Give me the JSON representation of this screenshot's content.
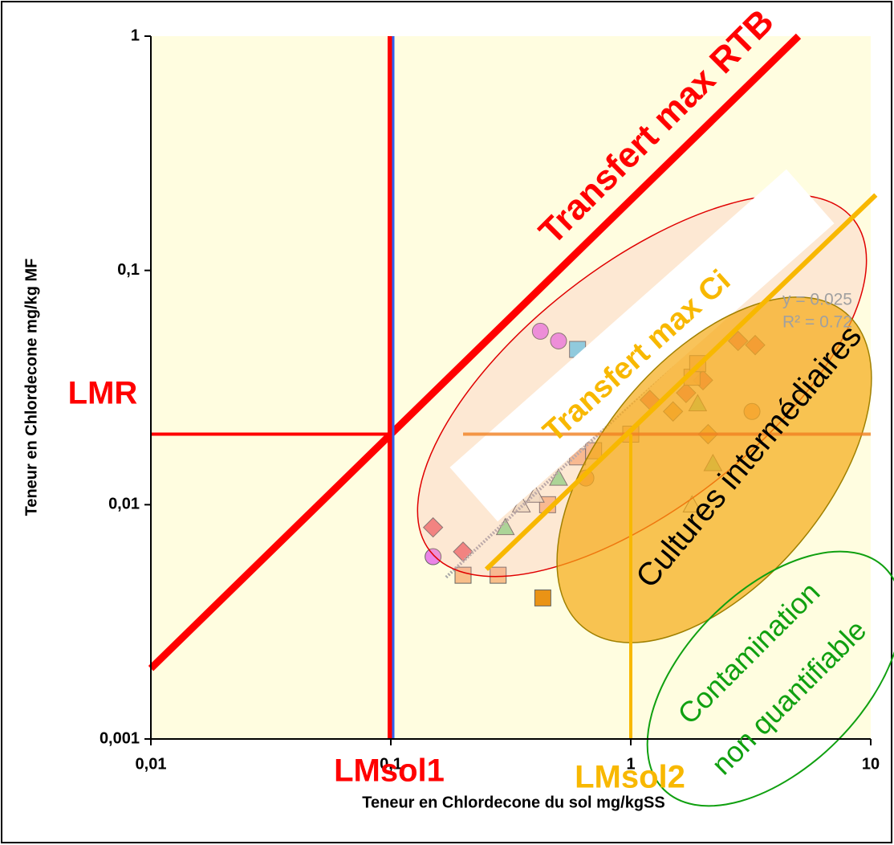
{
  "chart_data": {
    "type": "scatter",
    "x_label": "Teneur en Chlordecone  du sol  mg/kgSS",
    "y_label": "Teneur en Chlordecone   mg/kg MF",
    "log_x": true,
    "log_y": true,
    "xlim": [
      0.01,
      10
    ],
    "ylim": [
      0.001,
      1
    ],
    "xticks": [
      {
        "value": 0.01,
        "label": "0,01"
      },
      {
        "value": 0.1,
        "label": "0,1"
      },
      1,
      10
    ],
    "yticks": [
      {
        "value": 0.001,
        "label": "0,001"
      },
      {
        "value": 0.01,
        "label": "0,01"
      },
      {
        "value": 0.1,
        "label": "0,1"
      },
      1
    ],
    "equation": "y = 0.025",
    "r_squared": "R² = 0.72",
    "zones": [
      "Cultures intermédiaires",
      "Contamination",
      "non quantifiable"
    ],
    "series": [
      {
        "marker": "circle",
        "color": "#e878e8",
        "x": [
          0.42,
          0.5,
          0.15
        ],
        "values": [
          0.055,
          0.05,
          0.006
        ]
      },
      {
        "marker": "diamond",
        "color": "#f06868",
        "x": [
          0.15,
          0.2,
          2.8,
          3.3,
          1.7,
          2.0,
          1.2
        ],
        "values": [
          0.008,
          0.0063,
          0.05,
          0.048,
          0.03,
          0.034,
          0.028
        ]
      },
      {
        "marker": "square",
        "color": "#f8b880",
        "x": [
          0.2,
          0.28,
          0.45,
          0.6,
          0.7,
          1.8,
          1.9,
          1.0
        ],
        "values": [
          0.005,
          0.005,
          0.01,
          0.016,
          0.017,
          0.035,
          0.04,
          0.02
        ]
      },
      {
        "marker": "square",
        "color": "#e88800",
        "x": [
          0.43
        ],
        "values": [
          0.004
        ]
      },
      {
        "marker": "triangle",
        "color": "#88e088",
        "x": [
          0.3,
          0.5,
          1.9,
          2.2
        ],
        "values": [
          0.008,
          0.013,
          0.027,
          0.015
        ]
      },
      {
        "marker": "triangle",
        "color": "#f0e8c8",
        "x": [
          0.35,
          0.4,
          1.8
        ],
        "values": [
          0.01,
          0.011,
          0.01
        ]
      },
      {
        "marker": "circle",
        "color": "#f8a060",
        "x": [
          0.65,
          3.2
        ],
        "values": [
          0.013,
          0.025
        ]
      },
      {
        "marker": "diamond",
        "color": "#f0a040",
        "x": [
          2.1,
          1.5
        ],
        "values": [
          0.02,
          0.025
        ]
      },
      {
        "marker": "square",
        "color": "#60d0f0",
        "x": [
          0.6
        ],
        "values": [
          0.046
        ]
      }
    ],
    "regression": {
      "color": "#a8a8a8",
      "x": [
        0.17,
        5.3
      ],
      "values": [
        0.0049,
        0.134
      ]
    },
    "lines": [
      {
        "label": "Transfert max RTB",
        "color": "#ff0000",
        "width": 9,
        "x": [
          0.01,
          5
        ],
        "values": [
          0.002,
          1
        ]
      },
      {
        "label": "Transfert max Ci",
        "color": "#f8b800",
        "width": 6,
        "x": [
          0.25,
          10.5
        ],
        "values": [
          0.0053,
          0.21
        ]
      },
      {
        "label": "LMR",
        "color": "#ff0000",
        "width": 4,
        "x": [
          0.01,
          0.1
        ],
        "values": [
          0.02,
          0.02
        ]
      },
      {
        "label": "LMsol1",
        "color": "#ff0000",
        "width": 8,
        "x": [
          0.1,
          0.1
        ],
        "values": [
          0.001,
          1
        ]
      },
      {
        "label": "LMsol2",
        "color": "#f8b800",
        "width": 4,
        "x": [
          1,
          1
        ],
        "values": [
          0.001,
          0.02
        ]
      }
    ],
    "guide": {
      "color": "#f08020",
      "x": [
        0.2,
        10
      ],
      "values": [
        0.02,
        0.02
      ]
    }
  }
}
